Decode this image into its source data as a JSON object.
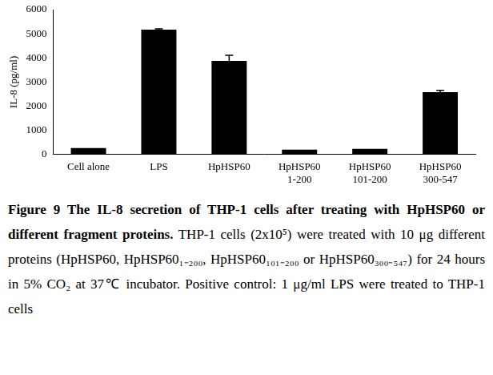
{
  "chart_data": {
    "type": "bar",
    "y_label": "IL-8 (pg/ml)",
    "categories": [
      "Cell alone",
      "LPS",
      "HpHSP60",
      "HpHSP60\n1-200",
      "HpHSP60\n101-200",
      "HpHSP60\n300-547"
    ],
    "values": [
      270,
      5170,
      3880,
      200,
      230,
      2580
    ],
    "errors": [
      0,
      30,
      230,
      0,
      0,
      80
    ],
    "color": "#000000",
    "ylim": [
      0,
      6000
    ],
    "yticks": [
      0,
      1000,
      2000,
      3000,
      4000,
      5000,
      6000
    ],
    "grid": false
  },
  "caption": {
    "title": "Figure 9 The IL-8 secretion of THP-1 cells after treating with HpHSP60 or different fragment proteins.",
    "text": "THP-1 cells (2x10⁵) were treated with 10 μg different proteins (HpHSP60, HpHSP60₁₋₂₀₀, HpHSP60₁₀₁₋₂₀₀ or HpHSP60₃₀₀₋₅₄₇) for 24 hours in 5% CO₂ at 37℃ incubator. Positive control: 1 μg/ml LPS were treated to THP-1 cells"
  }
}
